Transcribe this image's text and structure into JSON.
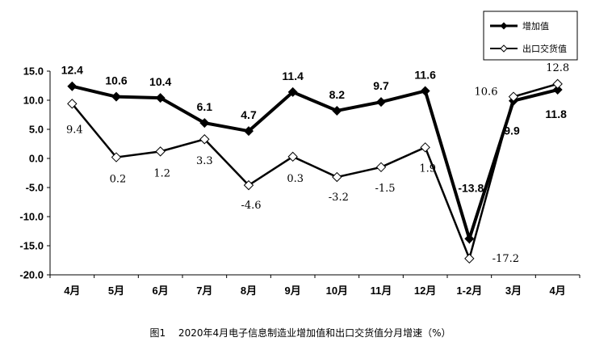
{
  "chart_data": {
    "type": "line",
    "title": "",
    "xlabel": "",
    "ylabel": "",
    "ylim": [
      -20,
      15
    ],
    "yticks": [
      "15.0",
      "10.0",
      "5.0",
      "0.0",
      "-5.0",
      "-10.0",
      "-15.0",
      "-20.0"
    ],
    "categories": [
      "4月",
      "5月",
      "6月",
      "7月",
      "8月",
      "9月",
      "10月",
      "11月",
      "12月",
      "1-2月",
      "3月",
      "4月"
    ],
    "series": [
      {
        "name": "增加值",
        "marker": "filled-diamond",
        "values": [
          12.4,
          10.6,
          10.4,
          6.1,
          4.7,
          11.4,
          8.2,
          9.7,
          11.6,
          -13.8,
          9.9,
          11.8
        ],
        "labels": [
          "12.4",
          "10.6",
          "10.4",
          "6.1",
          "4.7",
          "11.4",
          "8.2",
          "9.7",
          "11.6",
          "-13.8",
          "9.9",
          "11.8"
        ]
      },
      {
        "name": "出口交货值",
        "marker": "open-diamond",
        "values": [
          9.4,
          0.2,
          1.2,
          3.3,
          -4.6,
          0.3,
          -3.2,
          -1.5,
          1.9,
          -17.2,
          10.6,
          12.8
        ],
        "labels": [
          "9.4",
          "0.2",
          "1.2",
          "3.3",
          "-4.6",
          "0.3",
          "-3.2",
          "-1.5",
          "1.9",
          "-17.2",
          "10.6",
          "12.8"
        ]
      }
    ],
    "legend_position": "top-right",
    "colors": {
      "line": "#000000",
      "open_marker_fill": "#ffffff"
    }
  },
  "caption": "图1　 2020年4月电子信息制造业增加值和出口交货值分月增速（%）"
}
